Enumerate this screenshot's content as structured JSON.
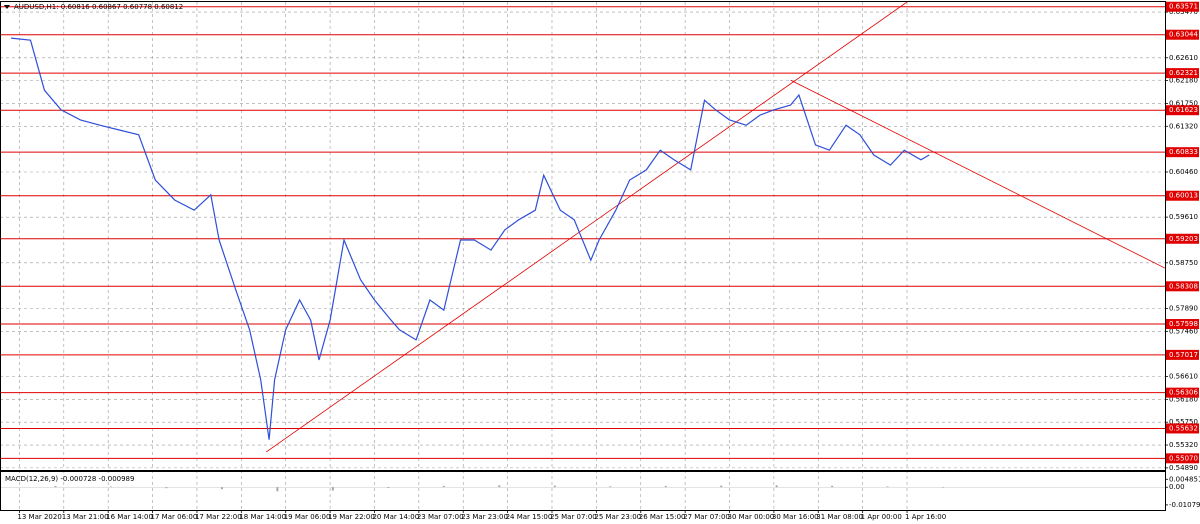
{
  "chart_data": [
    {
      "type": "line",
      "title": "AUDUSD,H1: 0.60816 0.60867 0.60778 0.60812",
      "x": [
        4,
        11,
        16,
        22,
        29,
        36,
        43,
        50,
        56,
        63,
        70,
        76,
        79,
        85,
        90,
        94,
        97,
        99,
        103,
        108,
        112,
        115,
        119,
        124,
        130,
        135,
        141,
        144,
        150,
        155,
        160,
        166,
        171,
        177,
        182,
        187,
        193,
        196,
        202,
        207,
        213,
        216,
        222,
        227,
        233,
        238,
        243,
        249,
        254,
        258,
        263,
        269,
        274,
        279,
        285,
        288,
        294,
        299,
        305,
        310,
        315,
        321,
        326,
        332,
        335
      ],
      "series": [
        {
          "color": "#2f4fd8",
          "values": [
            0.6298,
            0.6294,
            0.62,
            0.6163,
            0.6144,
            0.6134,
            0.6125,
            0.6116,
            0.6031,
            0.5993,
            0.5974,
            0.6003,
            0.5918,
            0.5824,
            0.5749,
            0.5655,
            0.5542,
            0.5655,
            0.5749,
            0.5805,
            0.5767,
            0.5692,
            0.5767,
            0.5918,
            0.5843,
            0.5805,
            0.5767,
            0.5749,
            0.573,
            0.5805,
            0.5786,
            0.5918,
            0.5918,
            0.5899,
            0.5937,
            0.5956,
            0.5974,
            0.604,
            0.5974,
            0.5956,
            0.588,
            0.5918,
            0.5974,
            0.6031,
            0.605,
            0.6087,
            0.6069,
            0.605,
            0.6181,
            0.6163,
            0.6144,
            0.6134,
            0.6153,
            0.6163,
            0.6172,
            0.6191,
            0.6097,
            0.6087,
            0.6134,
            0.6116,
            0.6078,
            0.6059,
            0.6087,
            0.6069,
            0.6078
          ]
        }
      ],
      "xlim": [
        0,
        420
      ],
      "xticks": [
        {
          "value": 7,
          "label": "13 Mar 2020"
        },
        {
          "value": 23,
          "label": "13 Mar 21:00"
        },
        {
          "value": 39,
          "label": "16 Mar 14:00"
        },
        {
          "value": 55,
          "label": "17 Mar 06:00"
        },
        {
          "value": 71,
          "label": "17 Mar 22:00"
        },
        {
          "value": 87,
          "label": "18 Mar 14:00"
        },
        {
          "value": 103,
          "label": "19 Mar 06:00"
        },
        {
          "value": 119,
          "label": "19 Mar 22:00"
        },
        {
          "value": 135,
          "label": "20 Mar 14:00"
        },
        {
          "value": 151,
          "label": "23 Mar 07:00"
        },
        {
          "value": 167,
          "label": "23 Mar 23:00"
        },
        {
          "value": 183,
          "label": "24 Mar 15:00"
        },
        {
          "value": 199,
          "label": "25 Mar 07:00"
        },
        {
          "value": 215,
          "label": "25 Mar 23:00"
        },
        {
          "value": 231,
          "label": "26 Mar 15:00"
        },
        {
          "value": 247,
          "label": "27 Mar 07:00"
        },
        {
          "value": 263,
          "label": "30 Mar 00:00"
        },
        {
          "value": 279,
          "label": "30 Mar 16:00"
        },
        {
          "value": 295,
          "label": "31 Mar 08:00"
        },
        {
          "value": 311,
          "label": "1 Apr 00:00"
        },
        {
          "value": 327,
          "label": "1 Apr 16:00"
        }
      ],
      "ylim": [
        0.5485,
        0.6366
      ],
      "yticks": [
        {
          "value": 0.6347,
          "label": "0.63470"
        },
        {
          "value": 0.6261,
          "label": "0.62610"
        },
        {
          "value": 0.6218,
          "label": "0.62180"
        },
        {
          "value": 0.6175,
          "label": "0.61750"
        },
        {
          "value": 0.6132,
          "label": "0.61320"
        },
        {
          "value": 0.6046,
          "label": "0.60460"
        },
        {
          "value": 0.5961,
          "label": "0.59610"
        },
        {
          "value": 0.5875,
          "label": "0.58750"
        },
        {
          "value": 0.5789,
          "label": "0.57890"
        },
        {
          "value": 0.5746,
          "label": "0.57460"
        },
        {
          "value": 0.5661,
          "label": "0.56610"
        },
        {
          "value": 0.5618,
          "label": "0.56180"
        },
        {
          "value": 0.5575,
          "label": "0.55750"
        },
        {
          "value": 0.5532,
          "label": "0.55320"
        },
        {
          "value": 0.5489,
          "label": "0.54890"
        }
      ],
      "grid": true,
      "level_color": "#e00000",
      "levels": [
        {
          "value": 0.63571,
          "label": "0.63571"
        },
        {
          "value": 0.63044,
          "label": "0.63044"
        },
        {
          "value": 0.62321,
          "label": "0.62321"
        },
        {
          "value": 0.61623,
          "label": "0.61623"
        },
        {
          "value": 0.60833,
          "label": "0.60833"
        },
        {
          "value": 0.60013,
          "label": "0.60013"
        },
        {
          "value": 0.59203,
          "label": "0.59203"
        },
        {
          "value": 0.58308,
          "label": "0.58308"
        },
        {
          "value": 0.57598,
          "label": "0.57598"
        },
        {
          "value": 0.57017,
          "label": "0.57017"
        },
        {
          "value": 0.56306,
          "label": "0.56306"
        },
        {
          "value": 0.55632,
          "label": "0.55632"
        },
        {
          "value": 0.5507,
          "label": "0.55070"
        }
      ],
      "trendlines": [
        {
          "x": [
            96,
            327
          ],
          "y": [
            0.5519,
            0.6366
          ]
        },
        {
          "x": [
            285,
            420
          ],
          "y": [
            0.6219,
            0.5865
          ]
        }
      ]
    },
    {
      "type": "bar",
      "title": "MACD(12,26,9) -0.000728 -0.000989",
      "x": [
        0,
        20,
        40,
        60,
        80,
        100,
        120,
        140,
        160,
        180,
        200,
        220,
        240,
        260,
        280,
        300,
        320,
        340
      ],
      "values": [
        0.0005,
        0.0008,
        0.0004,
        -0.0006,
        -0.0012,
        -0.0025,
        -0.002,
        -0.0005,
        0.0008,
        0.0012,
        0.001,
        0.0006,
        0.0008,
        0.001,
        0.0012,
        0.0009,
        0.0005,
        -0.0002
      ],
      "color": "#a8a8a8",
      "xlim": [
        0,
        420
      ],
      "ylim": [
        -0.0139,
        0.0093
      ],
      "yticks": [
        0.004851,
        {
          "value": 0,
          "label": "0.00"
        },
        -0.01079
      ]
    }
  ]
}
